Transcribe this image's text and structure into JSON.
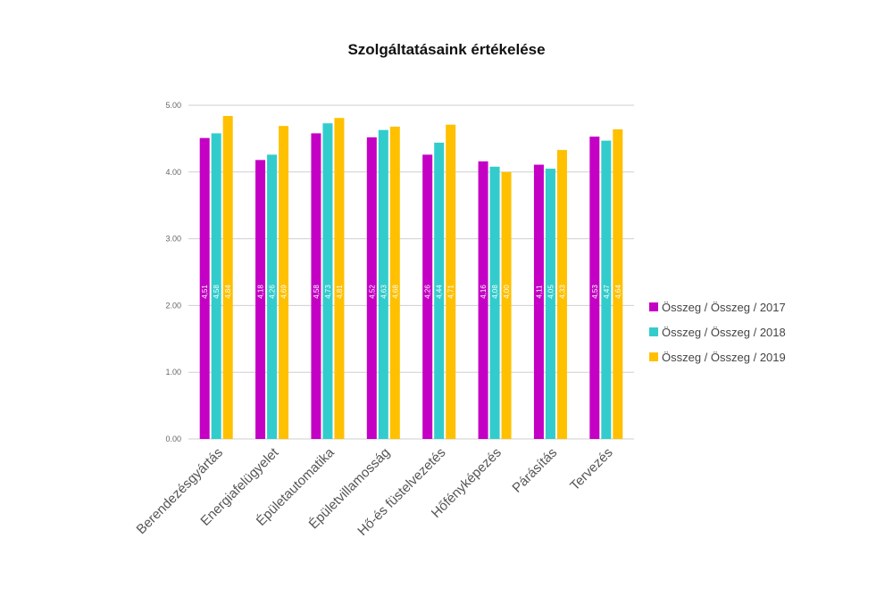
{
  "chart_data": {
    "type": "bar",
    "title": "Szolgáltatásaink értékelése",
    "xlabel": "",
    "ylabel": "",
    "ylim": [
      0,
      5
    ],
    "yticks": [
      "0.00",
      "1.00",
      "2.00",
      "3.00",
      "4.00",
      "5.00"
    ],
    "grid": true,
    "legend_position": "right",
    "categories": [
      "Berendezésgyártás",
      "Energiafelügyelet",
      "Épületautomatika",
      "Épületvillamosság",
      "Hő-és füstelvezetés",
      "Hőfényképezés",
      "Párásítás",
      "Tervezés"
    ],
    "series": [
      {
        "name": "Összeg / Összeg / 2017",
        "color": "#c400c4",
        "values": [
          4.51,
          4.18,
          4.58,
          4.52,
          4.26,
          4.16,
          4.11,
          4.53
        ],
        "labels": [
          "4,51",
          "4,18",
          "4,58",
          "4,52",
          "4,26",
          "4,16",
          "4,11",
          "4,53"
        ]
      },
      {
        "name": "Összeg / Összeg / 2018",
        "color": "#33cccc",
        "values": [
          4.58,
          4.26,
          4.73,
          4.63,
          4.44,
          4.08,
          4.05,
          4.47
        ],
        "labels": [
          "4,58",
          "4,26",
          "4,73",
          "4,63",
          "4,44",
          "4,08",
          "4,05",
          "4,47"
        ]
      },
      {
        "name": "Összeg / Összeg / 2019",
        "color": "#ffc000",
        "values": [
          4.84,
          4.69,
          4.81,
          4.68,
          4.71,
          4.0,
          4.33,
          4.64
        ],
        "labels": [
          "4,84",
          "4,69",
          "4,81",
          "4,68",
          "4,71",
          "4,00",
          "4,33",
          "4,64"
        ]
      }
    ]
  }
}
